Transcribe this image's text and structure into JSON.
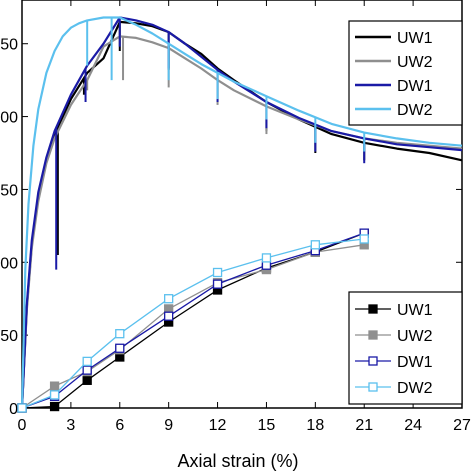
{
  "chart_data": {
    "type": "line",
    "xlabel": "Axial strain (%)",
    "xlim": [
      0,
      27
    ],
    "x_ticks": [
      "0",
      "3",
      "6",
      "9",
      "12",
      "15",
      "18",
      "21",
      "24",
      "27"
    ],
    "left_ylim": [
      0,
      280
    ],
    "left_tick_values": [
      0,
      50,
      100,
      150,
      200,
      250
    ],
    "left_tick_labels": [
      "0",
      "50",
      "100",
      "150",
      "200",
      "250"
    ],
    "right_ylim": [
      0,
      1
    ],
    "grid": false,
    "stress_curves": {
      "legend_position": "top-right",
      "series": [
        {
          "name": "UW1",
          "color": "#000000",
          "x": [
            0,
            0.3,
            0.6,
            1.0,
            1.5,
            2.0,
            3.0,
            4.0,
            5.0,
            6.0,
            7.0,
            8.0,
            9.0,
            10.0,
            11.0,
            12.0,
            13.0,
            15.0,
            17.0,
            19.0,
            21.0,
            23.0,
            25.0,
            27.0
          ],
          "y": [
            0,
            70,
            112,
            145,
            170,
            188,
            212,
            230,
            240,
            265,
            264,
            262,
            258,
            250,
            243,
            233,
            225,
            210,
            198,
            188,
            182,
            178,
            175,
            170
          ],
          "drops": [
            [
              2.2,
              105
            ],
            [
              3.8,
              215
            ],
            [
              6.0,
              245
            ],
            [
              9.0,
              232
            ],
            [
              12.0,
              212
            ],
            [
              15.0,
              190
            ],
            [
              18.0,
              175
            ],
            [
              21.0,
              170
            ]
          ]
        },
        {
          "name": "UW2",
          "color": "#8f8f8f",
          "x": [
            0,
            0.3,
            0.6,
            1.0,
            1.5,
            2.0,
            3.0,
            4.0,
            5.0,
            6.0,
            7.0,
            8.0,
            9.0,
            10.0,
            11.0,
            12.0,
            13.0,
            15.0,
            17.0,
            19.0,
            21.0,
            23.0,
            25.0,
            27.0
          ],
          "y": [
            0,
            68,
            110,
            142,
            168,
            185,
            208,
            225,
            248,
            255,
            254,
            251,
            247,
            240,
            233,
            225,
            218,
            207,
            198,
            190,
            185,
            182,
            180,
            178
          ],
          "drops": [
            [
              4.0,
              218
            ],
            [
              6.2,
              225
            ],
            [
              9.0,
              220
            ],
            [
              12.0,
              208
            ],
            [
              15.0,
              188
            ],
            [
              18.0,
              176
            ],
            [
              21.0,
              172
            ]
          ]
        },
        {
          "name": "DW1",
          "color": "#1a1aa6",
          "x": [
            0,
            0.3,
            0.6,
            1.0,
            1.5,
            2.0,
            3.0,
            4.0,
            5.0,
            6.0,
            7.0,
            8.0,
            9.0,
            10.0,
            11.0,
            12.0,
            13.0,
            15.0,
            17.0,
            19.0,
            21.0,
            23.0,
            25.0,
            27.0
          ],
          "y": [
            0,
            72,
            115,
            148,
            172,
            190,
            215,
            235,
            250,
            268,
            266,
            263,
            258,
            250,
            241,
            232,
            224,
            210,
            199,
            190,
            185,
            181,
            179,
            177
          ],
          "drops": [
            [
              2.1,
              95
            ],
            [
              3.9,
              210
            ],
            [
              6.0,
              248
            ],
            [
              9.0,
              233
            ],
            [
              12.0,
              210
            ],
            [
              15.0,
              192
            ],
            [
              18.0,
              176
            ],
            [
              21.0,
              168
            ]
          ]
        },
        {
          "name": "DW2",
          "color": "#5bc0ee",
          "x": [
            0,
            0.2,
            0.4,
            0.7,
            1.0,
            1.5,
            2.0,
            2.5,
            3.0,
            3.5,
            4.0,
            5.0,
            6.0,
            7.0,
            8.0,
            9.0,
            10.0,
            11.0,
            12.0,
            13.0,
            15.0,
            17.0,
            19.0,
            21.0,
            23.0,
            25.0,
            27.0
          ],
          "y": [
            0,
            95,
            140,
            180,
            205,
            230,
            245,
            255,
            261,
            264,
            266,
            268,
            268,
            263,
            257,
            250,
            243,
            236,
            230,
            224,
            214,
            204,
            195,
            189,
            185,
            182,
            180
          ],
          "drops": [
            [
              4.0,
              235
            ],
            [
              5.5,
              225
            ],
            [
              9.0,
              225
            ],
            [
              12.0,
              212
            ],
            [
              15.0,
              198
            ],
            [
              18.0,
              182
            ],
            [
              21.0,
              176
            ]
          ]
        }
      ]
    },
    "marker_curves": {
      "legend_position": "bottom-right",
      "series": [
        {
          "name": "UW1",
          "color": "#000000",
          "marker": "filled-square",
          "x": [
            0,
            2,
            4,
            6,
            9,
            12,
            15,
            18,
            21
          ],
          "y": [
            0,
            1,
            19,
            35,
            59,
            81,
            96,
            107,
            120
          ]
        },
        {
          "name": "UW2",
          "color": "#8f8f8f",
          "marker": "filled-square",
          "x": [
            0,
            2,
            4,
            6,
            9,
            12,
            15,
            18,
            21
          ],
          "y": [
            0,
            15,
            25,
            40,
            68,
            86,
            95,
            107,
            112
          ]
        },
        {
          "name": "DW1",
          "color": "#1a1aa6",
          "marker": "open-square",
          "x": [
            0,
            2,
            4,
            6,
            9,
            12,
            15,
            18,
            21
          ],
          "y": [
            0,
            8,
            26,
            41,
            63,
            85,
            98,
            108,
            120
          ]
        },
        {
          "name": "DW2",
          "color": "#5bc0ee",
          "marker": "open-square",
          "x": [
            0,
            2,
            4,
            6,
            9,
            12,
            15,
            18,
            21
          ],
          "y": [
            0,
            9,
            32,
            51,
            75,
            93,
            103,
            112,
            116
          ]
        }
      ]
    }
  }
}
